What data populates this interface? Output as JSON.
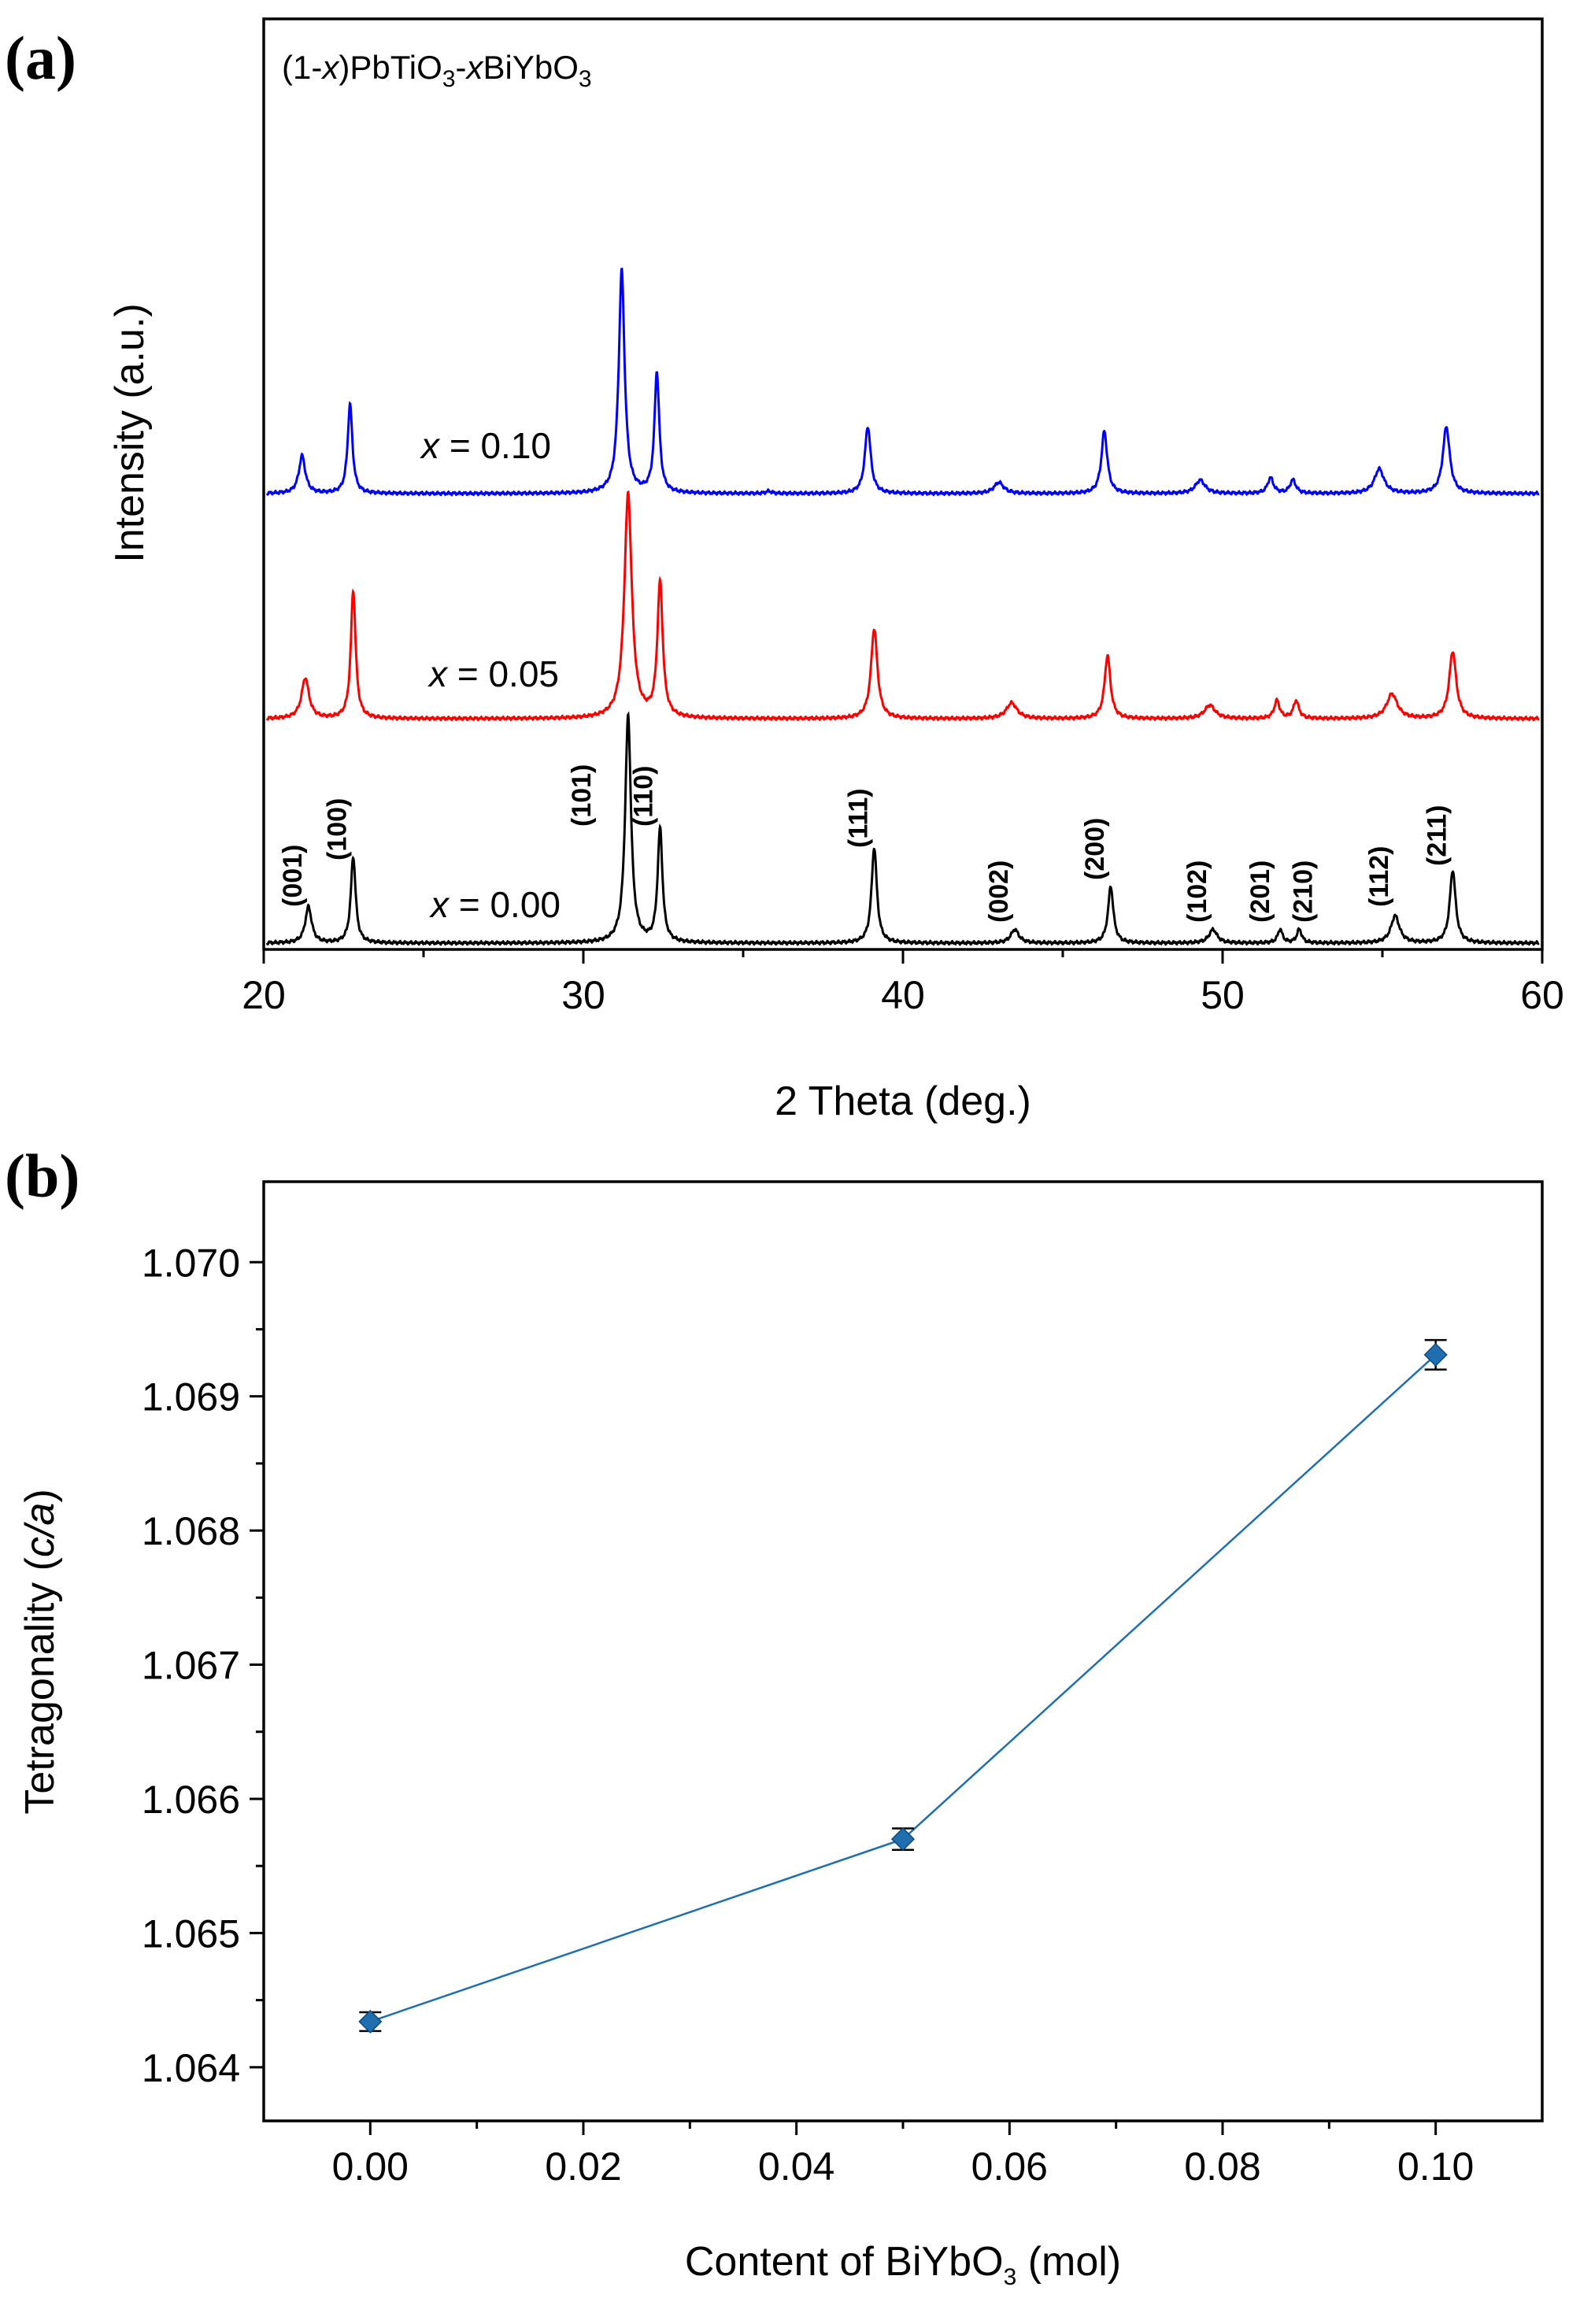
{
  "panels": {
    "a": {
      "letter": "(a)",
      "formula": {
        "p1": "(1-",
        "x1": "x",
        "p2": ")PbTiO",
        "s1": "3",
        "p3": "-",
        "x2": "x",
        "p4": "BiYbO",
        "s2": "3"
      },
      "xlabel": "2 Theta (deg.)",
      "ylabel": "Intensity (a.u.)"
    },
    "b": {
      "letter": "(b)",
      "xlabel_pre": "Content of BiYbO",
      "xlabel_sub": "3",
      "xlabel_post": " (mol)",
      "ylabel_pre": "Tetragonality (",
      "ylabel_it": "c/a",
      "ylabel_post": ")"
    }
  },
  "chart_data": [
    {
      "type": "line",
      "title": "",
      "xlabel": "2 Theta (deg.)",
      "ylabel": "Intensity (a.u.)",
      "xlim": [
        20,
        60
      ],
      "xticks": [
        "20",
        "30",
        "40",
        "50",
        "60"
      ],
      "yticks_labeled": false,
      "grid": false,
      "series": [
        {
          "name": "x = 0.00",
          "label_var": "x",
          "label_val": " = 0.00",
          "color": "#000000",
          "peaks": [
            {
              "x": 21.4,
              "h": 0.16,
              "w": 0.12
            },
            {
              "x": 22.8,
              "h": 0.38,
              "w": 0.09
            },
            {
              "x": 31.4,
              "h": 1.0,
              "w": 0.11
            },
            {
              "x": 32.4,
              "h": 0.5,
              "w": 0.09
            },
            {
              "x": 39.1,
              "h": 0.42,
              "w": 0.1
            },
            {
              "x": 43.5,
              "h": 0.06,
              "w": 0.15
            },
            {
              "x": 46.5,
              "h": 0.25,
              "w": 0.1
            },
            {
              "x": 49.7,
              "h": 0.06,
              "w": 0.15
            },
            {
              "x": 51.8,
              "h": 0.06,
              "w": 0.09
            },
            {
              "x": 52.4,
              "h": 0.06,
              "w": 0.09
            },
            {
              "x": 55.4,
              "h": 0.12,
              "w": 0.16
            },
            {
              "x": 57.2,
              "h": 0.32,
              "w": 0.11
            }
          ]
        },
        {
          "name": "x = 0.05",
          "label_var": "x",
          "label_val": " = 0.05",
          "color": "#ff0000",
          "peaks": [
            {
              "x": 21.3,
              "h": 0.18,
              "w": 0.14
            },
            {
              "x": 22.8,
              "h": 0.57,
              "w": 0.09
            },
            {
              "x": 31.4,
              "h": 1.0,
              "w": 0.14
            },
            {
              "x": 32.4,
              "h": 0.6,
              "w": 0.1
            },
            {
              "x": 39.1,
              "h": 0.4,
              "w": 0.12
            },
            {
              "x": 43.4,
              "h": 0.07,
              "w": 0.2
            },
            {
              "x": 46.4,
              "h": 0.28,
              "w": 0.11
            },
            {
              "x": 49.6,
              "h": 0.06,
              "w": 0.2
            },
            {
              "x": 51.7,
              "h": 0.08,
              "w": 0.1
            },
            {
              "x": 52.3,
              "h": 0.08,
              "w": 0.1
            },
            {
              "x": 55.3,
              "h": 0.11,
              "w": 0.2
            },
            {
              "x": 57.2,
              "h": 0.3,
              "w": 0.13
            }
          ]
        },
        {
          "name": "x = 0.10",
          "label_var": "x",
          "label_val": " = 0.10",
          "color": "#0000ff",
          "peaks": [
            {
              "x": 21.2,
              "h": 0.17,
              "w": 0.12
            },
            {
              "x": 22.7,
              "h": 0.4,
              "w": 0.09
            },
            {
              "x": 31.2,
              "h": 1.0,
              "w": 0.11
            },
            {
              "x": 32.3,
              "h": 0.54,
              "w": 0.09
            },
            {
              "x": 35.8,
              "h": 0.01,
              "w": 0.1
            },
            {
              "x": 38.9,
              "h": 0.3,
              "w": 0.11
            },
            {
              "x": 43.0,
              "h": 0.05,
              "w": 0.18
            },
            {
              "x": 46.3,
              "h": 0.28,
              "w": 0.11
            },
            {
              "x": 49.3,
              "h": 0.06,
              "w": 0.18
            },
            {
              "x": 51.5,
              "h": 0.07,
              "w": 0.11
            },
            {
              "x": 52.2,
              "h": 0.06,
              "w": 0.11
            },
            {
              "x": 54.9,
              "h": 0.11,
              "w": 0.18
            },
            {
              "x": 57.0,
              "h": 0.3,
              "w": 0.13
            }
          ]
        }
      ],
      "peak_labels": [
        {
          "x": 21.4,
          "text": "(001)"
        },
        {
          "x": 22.8,
          "text": "(100)"
        },
        {
          "x": 31.4,
          "text": "(101)"
        },
        {
          "x": 32.4,
          "text": "(110)"
        },
        {
          "x": 39.1,
          "text": "(111)"
        },
        {
          "x": 43.5,
          "text": "(002)"
        },
        {
          "x": 46.5,
          "text": "(200)"
        },
        {
          "x": 49.7,
          "text": "(102)"
        },
        {
          "x": 51.8,
          "text": "(201)"
        },
        {
          "x": 52.4,
          "text": "(210)"
        },
        {
          "x": 55.4,
          "text": "(112)"
        },
        {
          "x": 57.2,
          "text": "(211)"
        }
      ]
    },
    {
      "type": "line",
      "title": "",
      "xlabel": "Content of BiYbO3 (mol)",
      "ylabel": "Tetragonality (c/a)",
      "xlim": [
        -0.01,
        0.11
      ],
      "ylim": [
        1.0636,
        1.0706
      ],
      "xticks": [
        "0.00",
        "0.02",
        "0.04",
        "0.06",
        "0.08",
        "0.10"
      ],
      "yticks": [
        "1.064",
        "1.065",
        "1.066",
        "1.067",
        "1.068",
        "1.069",
        "1.070"
      ],
      "grid": false,
      "series": [
        {
          "color": "#1f6fb0",
          "marker": "diamond",
          "points": [
            {
              "x": 0.0,
              "y": 1.06434,
              "err": 7e-05
            },
            {
              "x": 0.05,
              "y": 1.0657,
              "err": 8e-05
            },
            {
              "x": 0.1,
              "y": 1.06931,
              "err": 0.00011
            }
          ]
        }
      ]
    }
  ]
}
